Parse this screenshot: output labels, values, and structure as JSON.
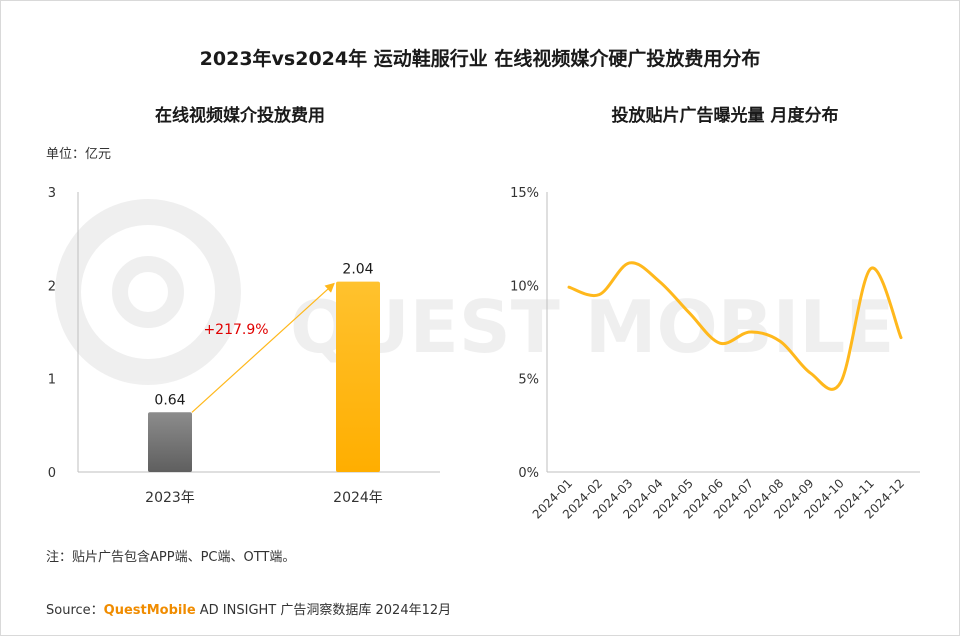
{
  "title": "2023年vs2024年 运动鞋服行业 在线视频媒介硬广投放费用分布",
  "watermark": "QUEST MOBILE",
  "note": "注：贴片广告包含APP端、PC端、OTT端。",
  "source": {
    "prefix": "Source：",
    "brand": "QuestMobile",
    "suffix": " AD INSIGHT 广告洞察数据库 2024年12月"
  },
  "colors": {
    "accent": "#FFB81C",
    "gray_bar": "#7F7F7F",
    "growth_label": "#E00000"
  },
  "chart_data": [
    {
      "type": "bar",
      "title": "在线视频媒介投放费用",
      "unit": "单位：亿元",
      "categories": [
        "2023年",
        "2024年"
      ],
      "values": [
        0.64,
        2.04
      ],
      "value_labels": [
        "0.64",
        "2.04"
      ],
      "ylim": [
        0,
        3
      ],
      "yticks": [
        "0",
        "1",
        "2",
        "3"
      ],
      "annotation": "+217.9%",
      "grid": false
    },
    {
      "type": "line",
      "title": "投放贴片广告曝光量 月度分布",
      "x": [
        "2024-01",
        "2024-02",
        "2024-03",
        "2024-04",
        "2024-05",
        "2024-06",
        "2024-07",
        "2024-08",
        "2024-09",
        "2024-10",
        "2024-11",
        "2024-12"
      ],
      "values": [
        9.9,
        9.5,
        11.2,
        10.2,
        8.5,
        6.9,
        7.5,
        7.0,
        5.3,
        4.8,
        10.9,
        7.2
      ],
      "ylim": [
        0,
        15
      ],
      "yticks": [
        "0%",
        "5%",
        "10%",
        "15%"
      ],
      "grid": false
    }
  ]
}
